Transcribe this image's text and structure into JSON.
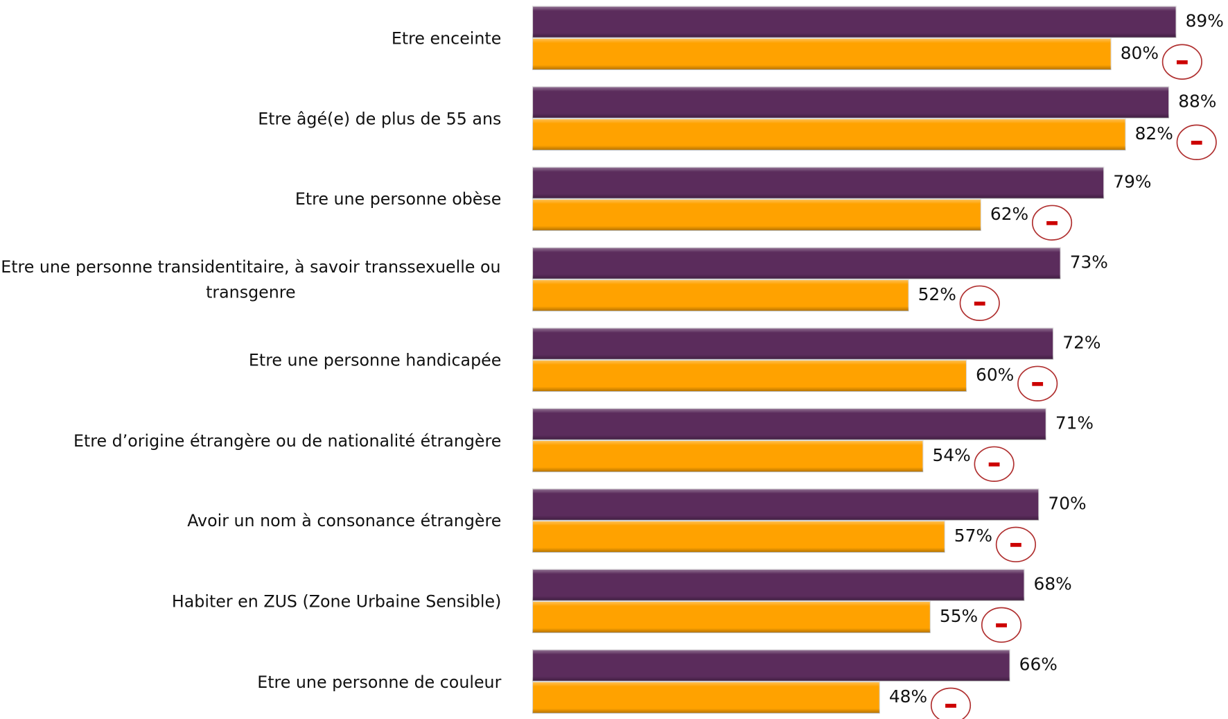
{
  "chart_data": {
    "type": "bar",
    "orientation": "horizontal",
    "categories": [
      "Etre enceinte",
      "Etre âgé(e) de plus de 55 ans",
      "Etre une personne obèse",
      "Etre une personne transidentitaire, à savoir transsexuelle ou transgenre",
      "Etre une personne handicapée",
      "Etre d’origine étrangère ou de nationalité étrangère",
      "Avoir un nom à consonance étrangère",
      "Habiter en ZUS (Zone Urbaine Sensible)",
      "Etre une personne de couleur"
    ],
    "series": [
      {
        "color": "#5b2c5c",
        "values": [
          89,
          88,
          79,
          73,
          72,
          71,
          70,
          68,
          66
        ],
        "value_labels": [
          "89%",
          "88%",
          "79%",
          "73%",
          "72%",
          "71%",
          "70%",
          "68%",
          "66%"
        ]
      },
      {
        "color": "#ffa200",
        "values": [
          80,
          82,
          62,
          52,
          60,
          54,
          57,
          55,
          48
        ],
        "value_labels": [
          "80%",
          "82%",
          "62%",
          "52%",
          "60%",
          "54%",
          "57%",
          "55%",
          "48%"
        ]
      }
    ]
  }
}
